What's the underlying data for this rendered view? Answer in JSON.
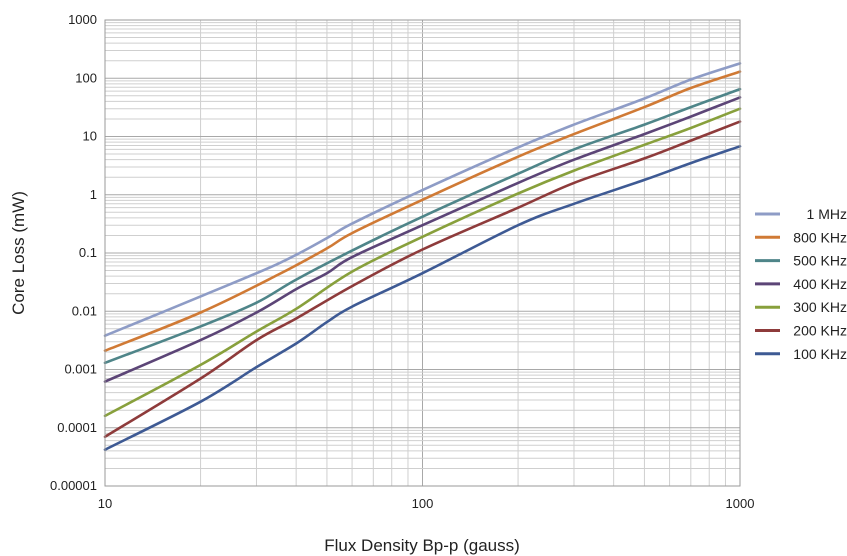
{
  "chart_data": {
    "type": "line",
    "xlabel": "Flux Density Bp-p (gauss)",
    "ylabel": "Core Loss (mW)",
    "x_scale": "log",
    "y_scale": "log",
    "xlim": [
      10,
      1000
    ],
    "ylim": [
      1e-05,
      1000
    ],
    "x_ticks": [
      "10",
      "100",
      "1000"
    ],
    "y_ticks": [
      "0.00001",
      "0.0001",
      "0.001",
      "0.01",
      "0.1",
      "1",
      "10",
      "100",
      "1000"
    ],
    "grid": true,
    "legend_position": "right",
    "series": [
      {
        "name": "1 MHz",
        "color": "#8e9cc6",
        "points": [
          [
            10,
            0.0038
          ],
          [
            20,
            0.018
          ],
          [
            35,
            0.065
          ],
          [
            50,
            0.18
          ],
          [
            60,
            0.32
          ],
          [
            100,
            1.2
          ],
          [
            200,
            6.5
          ],
          [
            300,
            16
          ],
          [
            500,
            45
          ],
          [
            700,
            95
          ],
          [
            1000,
            180
          ]
        ]
      },
      {
        "name": "800 KHz",
        "color": "#d07a35",
        "points": [
          [
            10,
            0.0021
          ],
          [
            20,
            0.0095
          ],
          [
            35,
            0.042
          ],
          [
            50,
            0.12
          ],
          [
            60,
            0.22
          ],
          [
            100,
            0.82
          ],
          [
            200,
            4.5
          ],
          [
            300,
            11
          ],
          [
            500,
            32
          ],
          [
            700,
            68
          ],
          [
            1000,
            130
          ]
        ]
      },
      {
        "name": "500 KHz",
        "color": "#4f8589",
        "points": [
          [
            10,
            0.0013
          ],
          [
            20,
            0.0055
          ],
          [
            30,
            0.014
          ],
          [
            40,
            0.035
          ],
          [
            60,
            0.11
          ],
          [
            100,
            0.42
          ],
          [
            200,
            2.3
          ],
          [
            300,
            6
          ],
          [
            500,
            16
          ],
          [
            700,
            32
          ],
          [
            1000,
            65
          ]
        ]
      },
      {
        "name": "400 KHz",
        "color": "#5c4577",
        "points": [
          [
            10,
            0.00062
          ],
          [
            20,
            0.0032
          ],
          [
            30,
            0.0095
          ],
          [
            40,
            0.024
          ],
          [
            50,
            0.045
          ],
          [
            60,
            0.085
          ],
          [
            100,
            0.3
          ],
          [
            200,
            1.6
          ],
          [
            300,
            4
          ],
          [
            500,
            11
          ],
          [
            700,
            22
          ],
          [
            1000,
            47
          ]
        ]
      },
      {
        "name": "300 KHz",
        "color": "#88a03c",
        "points": [
          [
            10,
            0.00016
          ],
          [
            20,
            0.0012
          ],
          [
            30,
            0.0045
          ],
          [
            40,
            0.011
          ],
          [
            60,
            0.048
          ],
          [
            100,
            0.19
          ],
          [
            200,
            1.05
          ],
          [
            300,
            2.6
          ],
          [
            500,
            7.2
          ],
          [
            700,
            14
          ],
          [
            1000,
            30
          ]
        ]
      },
      {
        "name": "200 KHz",
        "color": "#8e3b3b",
        "points": [
          [
            10,
            7e-05
          ],
          [
            20,
            0.0007
          ],
          [
            30,
            0.0032
          ],
          [
            40,
            0.0075
          ],
          [
            60,
            0.027
          ],
          [
            100,
            0.115
          ],
          [
            200,
            0.6
          ],
          [
            300,
            1.6
          ],
          [
            500,
            4.2
          ],
          [
            700,
            8.5
          ],
          [
            1000,
            18
          ]
        ]
      },
      {
        "name": "100 KHz",
        "color": "#3e5a94",
        "points": [
          [
            10,
            4.2e-05
          ],
          [
            20,
            0.00028
          ],
          [
            30,
            0.0011
          ],
          [
            40,
            0.0028
          ],
          [
            50,
            0.0065
          ],
          [
            60,
            0.012
          ],
          [
            100,
            0.045
          ],
          [
            200,
            0.3
          ],
          [
            300,
            0.7
          ],
          [
            500,
            1.8
          ],
          [
            700,
            3.5
          ],
          [
            1000,
            6.8
          ]
        ]
      }
    ]
  }
}
